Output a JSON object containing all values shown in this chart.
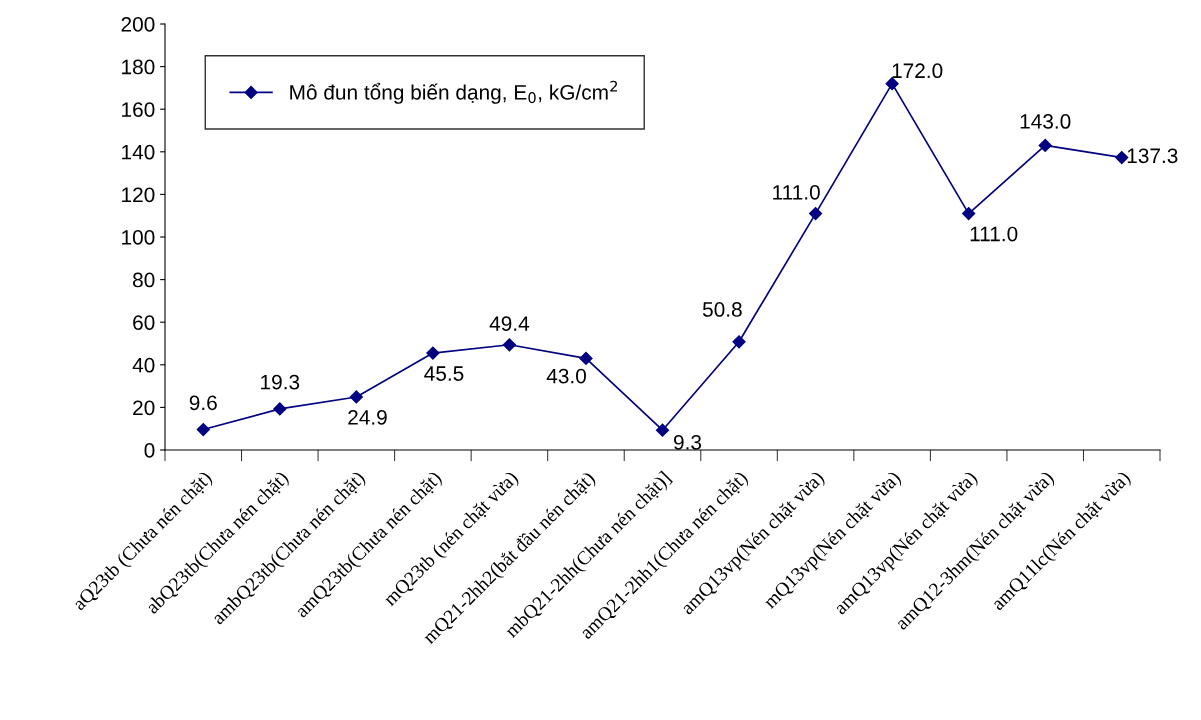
{
  "chart_data": {
    "type": "line",
    "categories": [
      "aQ23tb (Chưa nén chặt)",
      "abQ23tb(Chưa nén chặt)",
      "ambQ23tb(Chưa nén chặt)",
      "amQ23tb(Chưa nén chặt)",
      "mQ23tb (nén chặt vừa)",
      "mQ21-2hh2(bắt đầu nén chặt)",
      "mbQ21-2hh(Chưa nén chặt)]",
      "amQ21-2hh1(Chưa nén chặt)",
      "amQ13vp(Nén chặt vừa)",
      "mQ13vp(Nén chặt vừa)",
      "amQ13vp(Nén chặt vừa)",
      "amQ12-3hm(Nén chặt vừa)",
      "amQ11lc(Nén chặt vừa)"
    ],
    "series": [
      {
        "name": "Mô đun tổng biến dạng, E$_{0}$, kG/cm$^{2}$",
        "color": "#000080",
        "values": [
          9.6,
          19.3,
          24.9,
          45.5,
          49.4,
          43.0,
          9.3,
          50.8,
          111.0,
          172.0,
          111.0,
          143.0,
          137.3
        ],
        "value_labels": [
          "9.6",
          "19.3",
          "24.9",
          "45.5",
          "49.4",
          "43.0",
          "9.3",
          "50.8",
          "111.0",
          "172.0",
          "111.0",
          "143.0",
          "137.3"
        ]
      }
    ],
    "ylim": [
      0,
      200
    ],
    "yticks": [
      0,
      20,
      40,
      60,
      80,
      100,
      120,
      140,
      160,
      180,
      200
    ],
    "grid": false,
    "legend": "top left",
    "marker": "diamond",
    "line_style": "solid"
  }
}
